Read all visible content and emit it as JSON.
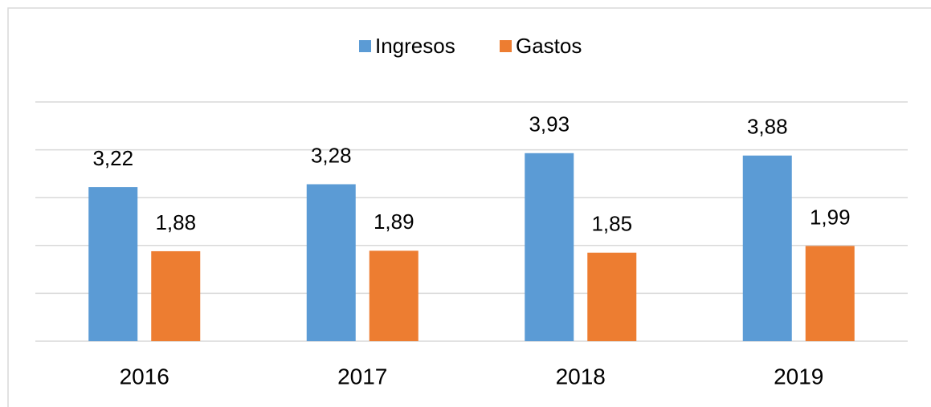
{
  "chart_data": {
    "type": "bar",
    "categories": [
      "2016",
      "2017",
      "2018",
      "2019"
    ],
    "series": [
      {
        "name": "Ingresos",
        "color": "#5b9bd5",
        "values": [
          3.22,
          3.28,
          3.93,
          3.88
        ],
        "value_labels": [
          "3,22",
          "3,28",
          "3,93",
          "3,88"
        ]
      },
      {
        "name": "Gastos",
        "color": "#ed7d31",
        "values": [
          1.88,
          1.89,
          1.85,
          1.99
        ],
        "value_labels": [
          "1,88",
          "1,89",
          "1,85",
          "1,99"
        ]
      }
    ],
    "ylim": [
      0,
      5
    ],
    "yticks": [
      0,
      1,
      2,
      3,
      4,
      5
    ],
    "grid": true,
    "legend": "top"
  }
}
